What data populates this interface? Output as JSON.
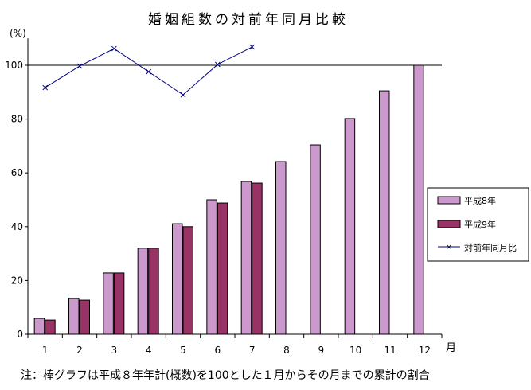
{
  "chart_data": {
    "type": "bar",
    "title": "婚姻組数の対前年同月比較",
    "ylabel": "(%)",
    "xlabel": "月",
    "ylim": [
      0,
      110
    ],
    "yticks": [
      0,
      20,
      40,
      60,
      80,
      100
    ],
    "categories": [
      "1",
      "2",
      "3",
      "4",
      "5",
      "6",
      "7",
      "8",
      "9",
      "10",
      "11",
      "12"
    ],
    "grid": false,
    "reference_line": 100,
    "legend_position": "right",
    "series": [
      {
        "name": "平成8年",
        "type": "bar",
        "color": "#cc99cc",
        "values": [
          5.9,
          13.3,
          22.8,
          32.0,
          41.1,
          50.0,
          56.8,
          64.2,
          70.4,
          80.2,
          90.5,
          100.0
        ]
      },
      {
        "name": "平成9年",
        "type": "bar",
        "color": "#993366",
        "values": [
          5.3,
          12.7,
          22.8,
          32.0,
          40.0,
          48.8,
          56.2,
          null,
          null,
          null,
          null,
          null
        ]
      },
      {
        "name": "対前年同月比",
        "type": "line",
        "color": "#000080",
        "marker": "x",
        "values": [
          91.7,
          99.7,
          106.2,
          97.6,
          89.0,
          100.3,
          106.8,
          null,
          null,
          null,
          null,
          null
        ]
      }
    ],
    "note": "注：棒グラフは平成８年年計(概数)を100とした１月からその月までの累計の割合"
  }
}
